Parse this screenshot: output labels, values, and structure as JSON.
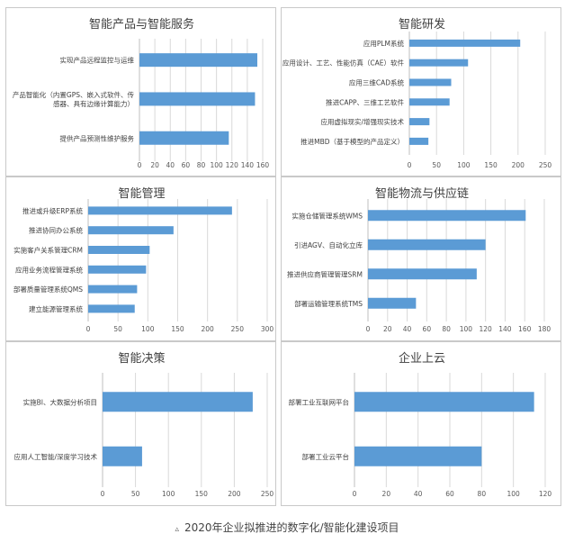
{
  "caption": "2020年企业拟推进的数字化/智能化建设项目",
  "caption_icon": "triangle-up-icon",
  "bar_color": "#5b9bd5",
  "chart_data": [
    {
      "type": "bar",
      "orientation": "horizontal",
      "title": "智能产品与智能服务",
      "categories": [
        "实现产品远程监控与运维",
        "产品智能化（内置GPS、嵌入式软件、传感器、具有边缘计算能力）",
        "提供产品预测性维护服务"
      ],
      "category_lines": [
        [
          "实现产品远程监控与运维"
        ],
        [
          "产品智能化（内置GPS、嵌入式软件、传",
          "感器、具有边缘计算能力）"
        ],
        [
          "提供产品预测性维护服务"
        ]
      ],
      "values": [
        153,
        150,
        116
      ],
      "xlim": [
        0,
        160
      ],
      "ticks": [
        0,
        20,
        40,
        60,
        80,
        100,
        120,
        140,
        160
      ],
      "grid": true
    },
    {
      "type": "bar",
      "orientation": "horizontal",
      "title": "智能研发",
      "categories": [
        "应用PLM系统",
        "应用设计、工艺、性能仿真（CAE）软件",
        "应用三维CAD系统",
        "推进CAPP、三维工艺软件",
        "应用虚拟现实/增强现实技术",
        "推进MBD（基于模型的产品定义）"
      ],
      "category_lines": [
        [
          "应用PLM系统"
        ],
        [
          "应用设计、工艺、性能仿真（CAE）软件"
        ],
        [
          "应用三维CAD系统"
        ],
        [
          "推进CAPP、三维工艺软件"
        ],
        [
          "应用虚拟现实/增强现实技术"
        ],
        [
          "推进MBD（基于模型的产品定义）"
        ]
      ],
      "values": [
        204,
        108,
        77,
        74,
        37,
        35
      ],
      "xlim": [
        0,
        250
      ],
      "ticks": [
        0,
        50,
        100,
        150,
        200,
        250
      ],
      "grid": true
    },
    {
      "type": "bar",
      "orientation": "horizontal",
      "title": "智能管理",
      "categories": [
        "推进或升级ERP系统",
        "推进协同办公系统",
        "实施客户关系管理CRM",
        "应用业务流程管理系统",
        "部署质量管理系统QMS",
        "建立能源管理系统"
      ],
      "category_lines": [
        [
          "推进或升级ERP系统"
        ],
        [
          "推进协同办公系统"
        ],
        [
          "实施客户关系管理CRM"
        ],
        [
          "应用业务流程管理系统"
        ],
        [
          "部署质量管理系统QMS"
        ],
        [
          "建立能源管理系统"
        ]
      ],
      "values": [
        241,
        143,
        103,
        97,
        82,
        78
      ],
      "xlim": [
        0,
        300
      ],
      "ticks": [
        0,
        50,
        100,
        150,
        200,
        250,
        300
      ],
      "grid": true
    },
    {
      "type": "bar",
      "orientation": "horizontal",
      "title": "智能物流与供应链",
      "categories": [
        "实施仓储管理系统WMS",
        "引进AGV、自动化立库",
        "推进供应商管理管理SRM",
        "部署运输管理系统TMS"
      ],
      "category_lines": [
        [
          "实施仓储管理系统WMS"
        ],
        [
          "引进AGV、自动化立库"
        ],
        [
          "推进供应商管理管理SRM"
        ],
        [
          "部署运输管理系统TMS"
        ]
      ],
      "values": [
        161,
        120,
        111,
        49
      ],
      "xlim": [
        0,
        180
      ],
      "ticks": [
        0,
        20,
        40,
        60,
        80,
        100,
        120,
        140,
        160,
        180
      ],
      "grid": true
    },
    {
      "type": "bar",
      "orientation": "horizontal",
      "title": "智能决策",
      "categories": [
        "实施BI、大数据分析项目",
        "应用人工智能/深度学习技术"
      ],
      "category_lines": [
        [
          "实施BI、大数据分析项目"
        ],
        [
          "应用人工智能/深度学习技术"
        ]
      ],
      "values": [
        228,
        60
      ],
      "xlim": [
        0,
        250
      ],
      "ticks": [
        0,
        50,
        100,
        150,
        200,
        250
      ],
      "grid": true
    },
    {
      "type": "bar",
      "orientation": "horizontal",
      "title": "企业上云",
      "categories": [
        "部署工业互联网平台",
        "部署工业云平台"
      ],
      "category_lines": [
        [
          "部署工业互联网平台"
        ],
        [
          "部署工业云平台"
        ]
      ],
      "values": [
        113,
        80
      ],
      "xlim": [
        0,
        120
      ],
      "ticks": [
        0,
        20,
        40,
        60,
        80,
        100,
        120
      ],
      "grid": true
    }
  ]
}
